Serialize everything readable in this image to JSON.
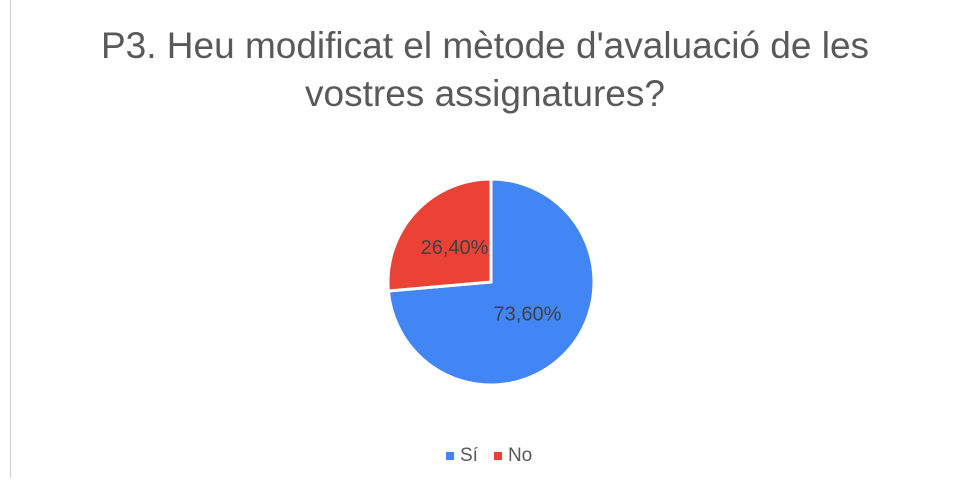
{
  "chart_data": {
    "type": "pie",
    "title": "P3. Heu modificat el mètode d'avaluació de les vostres assignatures?",
    "categories": [
      "Sí",
      "No"
    ],
    "values": [
      73.6,
      26.4
    ],
    "value_labels": [
      "73,60%",
      "26,40%"
    ],
    "colors": [
      "#4285f4",
      "#ea4335"
    ],
    "legend": "bottom"
  }
}
